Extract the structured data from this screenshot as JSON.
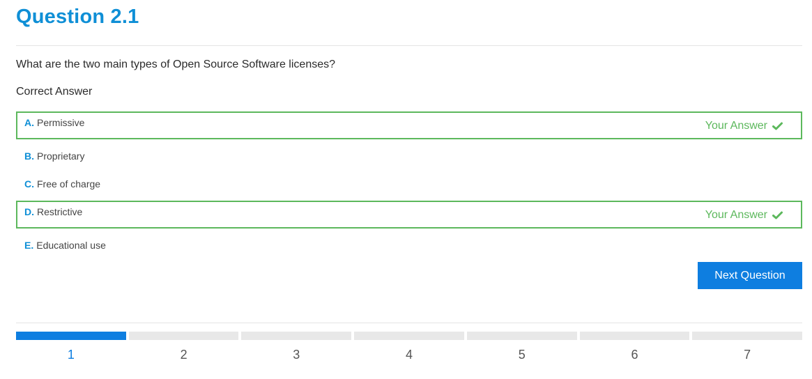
{
  "question": {
    "title": "Question 2.1",
    "text": "What are the two main types of Open Source Software licenses?",
    "correct_heading": "Correct Answer"
  },
  "options": [
    {
      "letter": "A.",
      "text": "Permissive",
      "selected": true,
      "tag": "Your Answer"
    },
    {
      "letter": "B.",
      "text": "Proprietary",
      "selected": false
    },
    {
      "letter": "C.",
      "text": "Free of charge",
      "selected": false
    },
    {
      "letter": "D.",
      "text": "Restrictive",
      "selected": true,
      "tag": "Your Answer"
    },
    {
      "letter": "E.",
      "text": "Educational use",
      "selected": false
    }
  ],
  "next_button": "Next Question",
  "progress": {
    "current": 1,
    "steps": [
      "1",
      "2",
      "3",
      "4",
      "5",
      "6",
      "7"
    ]
  },
  "colors": {
    "accent": "#0f8fd6",
    "button": "#0e7ee0",
    "correct": "#5cb85c"
  },
  "icons": {
    "answer_tag": "check-icon"
  }
}
